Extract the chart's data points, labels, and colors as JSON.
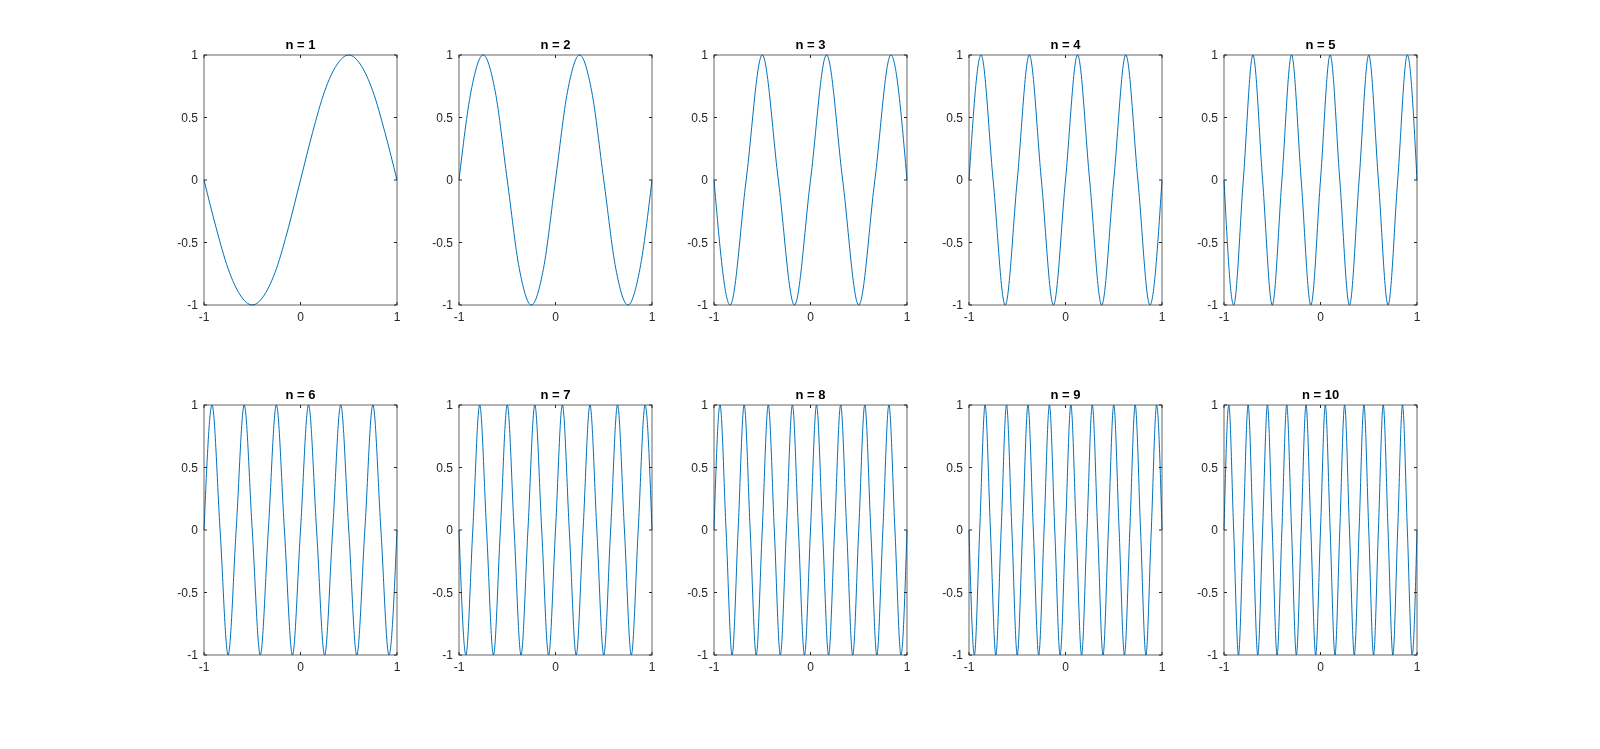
{
  "chart_data": [
    {
      "type": "line",
      "title": "n = 1",
      "color": "#0072bd",
      "xlim": [
        -1,
        1
      ],
      "xticks": [
        -1,
        0,
        1
      ],
      "ylim": [
        -1,
        1
      ],
      "yticks": [
        -1,
        -0.5,
        0,
        0.5,
        1
      ],
      "x": [
        -1,
        -0.875,
        -0.75,
        -0.625,
        -0.5,
        -0.375,
        -0.25,
        -0.125,
        0,
        0.125,
        0.25,
        0.375,
        0.5,
        0.625,
        0.75,
        0.875,
        1
      ],
      "values": [
        0,
        -0.38,
        -0.71,
        -0.92,
        -1,
        -0.92,
        -0.71,
        -0.38,
        0,
        0.38,
        0.71,
        0.92,
        1,
        0.92,
        0.71,
        0.38,
        0
      ]
    },
    {
      "type": "line",
      "title": "n = 2",
      "color": "#0072bd",
      "xlim": [
        -1,
        1
      ],
      "xticks": [
        -1,
        0,
        1
      ],
      "ylim": [
        -1,
        1
      ],
      "yticks": [
        -1,
        -0.5,
        0,
        0.5,
        1
      ],
      "x": [
        -1,
        -0.875,
        -0.75,
        -0.625,
        -0.5,
        -0.375,
        -0.25,
        -0.125,
        0,
        0.125,
        0.25,
        0.375,
        0.5,
        0.625,
        0.75,
        0.875,
        1
      ],
      "values": [
        0,
        0.71,
        1,
        0.71,
        0,
        -0.71,
        -1,
        -0.71,
        0,
        0.71,
        1,
        0.71,
        0,
        -0.71,
        -1,
        -0.71,
        0
      ]
    },
    {
      "type": "line",
      "title": "n = 3",
      "color": "#0072bd",
      "xlim": [
        -1,
        1
      ],
      "xticks": [
        -1,
        0,
        1
      ],
      "ylim": [
        -1,
        1
      ],
      "yticks": [
        -1,
        -0.5,
        0,
        0.5,
        1
      ],
      "x": [
        -1,
        -0.8333,
        -0.6667,
        -0.5,
        -0.3333,
        -0.1667,
        0,
        0.1667,
        0.3333,
        0.5,
        0.6667,
        0.8333,
        1
      ],
      "values": [
        0,
        -1,
        0,
        1,
        0,
        -1,
        0,
        1,
        0,
        -1,
        0,
        1,
        0
      ]
    },
    {
      "type": "line",
      "title": "n = 4",
      "color": "#0072bd",
      "xlim": [
        -1,
        1
      ],
      "xticks": [
        -1,
        0,
        1
      ],
      "ylim": [
        -1,
        1
      ],
      "yticks": [
        -1,
        -0.5,
        0,
        0.5,
        1
      ],
      "x": [
        -1,
        -0.875,
        -0.75,
        -0.625,
        -0.5,
        -0.375,
        -0.25,
        -0.125,
        0,
        0.125,
        0.25,
        0.375,
        0.5,
        0.625,
        0.75,
        0.875,
        1
      ],
      "values": [
        0,
        1,
        0,
        -1,
        0,
        1,
        0,
        -1,
        0,
        1,
        0,
        -1,
        0,
        1,
        0,
        -1,
        0
      ]
    },
    {
      "type": "line",
      "title": "n = 5",
      "color": "#0072bd",
      "xlim": [
        -1,
        1
      ],
      "xticks": [
        -1,
        0,
        1
      ],
      "ylim": [
        -1,
        1
      ],
      "yticks": [
        -1,
        -0.5,
        0,
        0.5,
        1
      ],
      "x": [
        -1,
        -0.9,
        -0.8,
        -0.7,
        -0.6,
        -0.5,
        -0.4,
        -0.3,
        -0.2,
        -0.1,
        0,
        0.1,
        0.2,
        0.3,
        0.4,
        0.5,
        0.6,
        0.7,
        0.8,
        0.9,
        1
      ],
      "values": [
        0,
        -1,
        0,
        1,
        0,
        -1,
        0,
        1,
        0,
        -1,
        0,
        1,
        0,
        -1,
        0,
        1,
        0,
        -1,
        0,
        1,
        0
      ]
    },
    {
      "type": "line",
      "title": "n = 6",
      "color": "#0072bd",
      "xlim": [
        -1,
        1
      ],
      "xticks": [
        -1,
        0,
        1
      ],
      "ylim": [
        -1,
        1
      ],
      "yticks": [
        -1,
        -0.5,
        0,
        0.5,
        1
      ],
      "x": [
        -1,
        -0.9167,
        -0.8333,
        -0.75,
        -0.6667,
        -0.5833,
        -0.5,
        -0.4167,
        -0.3333,
        -0.25,
        -0.1667,
        -0.0833,
        0,
        0.0833,
        0.1667,
        0.25,
        0.3333,
        0.4167,
        0.5,
        0.5833,
        0.6667,
        0.75,
        0.8333,
        0.9167,
        1
      ],
      "values": [
        0,
        1,
        0,
        -1,
        0,
        1,
        0,
        -1,
        0,
        1,
        0,
        -1,
        0,
        1,
        0,
        -1,
        0,
        1,
        0,
        -1,
        0,
        1,
        0,
        -1,
        0
      ]
    },
    {
      "type": "line",
      "title": "n = 7",
      "color": "#0072bd",
      "xlim": [
        -1,
        1
      ],
      "xticks": [
        -1,
        0,
        1
      ],
      "ylim": [
        -1,
        1
      ],
      "yticks": [
        -1,
        -0.5,
        0,
        0.5,
        1
      ],
      "x": [
        -1,
        -0.9286,
        -0.8571,
        -0.7857,
        -0.7143,
        -0.6429,
        -0.5714,
        -0.5,
        -0.4286,
        -0.3571,
        -0.2857,
        -0.2143,
        -0.1429,
        -0.0714,
        0,
        0.0714,
        0.1429,
        0.2143,
        0.2857,
        0.3571,
        0.4286,
        0.5,
        0.5714,
        0.6429,
        0.7143,
        0.7857,
        0.8571,
        0.9286,
        1
      ],
      "values": [
        0,
        -1,
        0,
        1,
        0,
        -1,
        0,
        1,
        0,
        -1,
        0,
        1,
        0,
        -1,
        0,
        1,
        0,
        -1,
        0,
        1,
        0,
        -1,
        0,
        1,
        0,
        -1,
        0,
        1,
        0
      ]
    },
    {
      "type": "line",
      "title": "n = 8",
      "color": "#0072bd",
      "xlim": [
        -1,
        1
      ],
      "xticks": [
        -1,
        0,
        1
      ],
      "ylim": [
        -1,
        1
      ],
      "yticks": [
        -1,
        -0.5,
        0,
        0.5,
        1
      ],
      "x": [
        -1,
        -0.9375,
        -0.875,
        -0.8125,
        -0.75,
        -0.6875,
        -0.625,
        -0.5625,
        -0.5,
        -0.4375,
        -0.375,
        -0.3125,
        -0.25,
        -0.1875,
        -0.125,
        -0.0625,
        0,
        0.0625,
        0.125,
        0.1875,
        0.25,
        0.3125,
        0.375,
        0.4375,
        0.5,
        0.5625,
        0.625,
        0.6875,
        0.75,
        0.8125,
        0.875,
        0.9375,
        1
      ],
      "values": [
        0,
        1,
        0,
        -1,
        0,
        1,
        0,
        -1,
        0,
        1,
        0,
        -1,
        0,
        1,
        0,
        -1,
        0,
        1,
        0,
        -1,
        0,
        1,
        0,
        -1,
        0,
        1,
        0,
        -1,
        0,
        1,
        0,
        -1,
        0
      ]
    },
    {
      "type": "line",
      "title": "n = 9",
      "color": "#0072bd",
      "xlim": [
        -1,
        1
      ],
      "xticks": [
        -1,
        0,
        1
      ],
      "ylim": [
        -1,
        1
      ],
      "yticks": [
        -1,
        -0.5,
        0,
        0.5,
        1
      ],
      "x": [
        -1,
        -0.9444,
        -0.8889,
        -0.8333,
        -0.7778,
        -0.7222,
        -0.6667,
        -0.6111,
        -0.5556,
        -0.5,
        -0.4444,
        -0.3889,
        -0.3333,
        -0.2778,
        -0.2222,
        -0.1667,
        -0.1111,
        -0.0556,
        0,
        0.0556,
        0.1111,
        0.1667,
        0.2222,
        0.2778,
        0.3333,
        0.3889,
        0.4444,
        0.5,
        0.5556,
        0.6111,
        0.6667,
        0.7222,
        0.7778,
        0.8333,
        0.8889,
        0.9444,
        1
      ],
      "values": [
        0,
        -1,
        0,
        1,
        0,
        -1,
        0,
        1,
        0,
        -1,
        0,
        1,
        0,
        -1,
        0,
        1,
        0,
        -1,
        0,
        1,
        0,
        -1,
        0,
        1,
        0,
        -1,
        0,
        1,
        0,
        -1,
        0,
        1,
        0,
        -1,
        0,
        1,
        0
      ]
    },
    {
      "type": "line",
      "title": "n = 10",
      "color": "#0072bd",
      "xlim": [
        -1,
        1
      ],
      "xticks": [
        -1,
        0,
        1
      ],
      "ylim": [
        -1,
        1
      ],
      "yticks": [
        -1,
        -0.5,
        0,
        0.5,
        1
      ],
      "x": [
        -1,
        -0.95,
        -0.9,
        -0.85,
        -0.8,
        -0.75,
        -0.7,
        -0.65,
        -0.6,
        -0.55,
        -0.5,
        -0.45,
        -0.4,
        -0.35,
        -0.3,
        -0.25,
        -0.2,
        -0.15,
        -0.1,
        -0.05,
        0,
        0.05,
        0.1,
        0.15,
        0.2,
        0.25,
        0.3,
        0.35,
        0.4,
        0.45,
        0.5,
        0.55,
        0.6,
        0.65,
        0.7,
        0.75,
        0.8,
        0.85,
        0.9,
        0.95,
        1
      ],
      "values": [
        0,
        1,
        0,
        -1,
        0,
        1,
        0,
        -1,
        0,
        1,
        0,
        -1,
        0,
        1,
        0,
        -1,
        0,
        1,
        0,
        -1,
        0,
        1,
        0,
        -1,
        0,
        1,
        0,
        -1,
        0,
        1,
        0,
        -1,
        0,
        1,
        0,
        -1,
        0,
        1,
        0,
        -1,
        0
      ]
    }
  ]
}
